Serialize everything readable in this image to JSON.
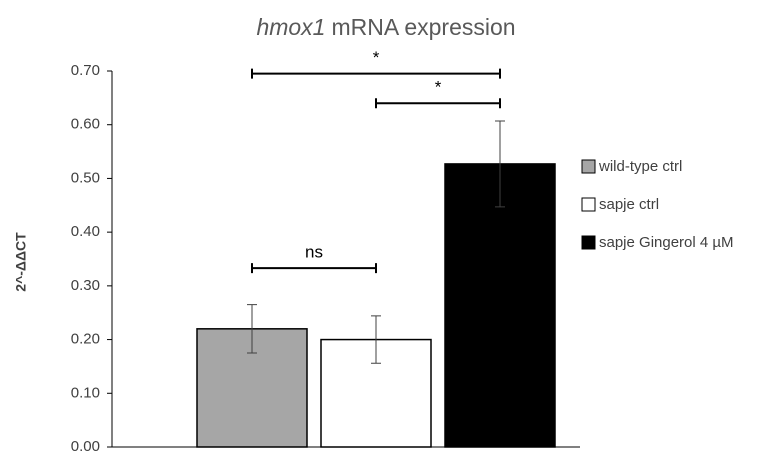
{
  "chart_data": {
    "type": "bar",
    "title": [
      "hmox1",
      "mRNA expression"
    ],
    "y_label": "2^-ΔΔCT",
    "categories": [
      "wild-type ctrl",
      "sapje ctrl",
      "sapje Gingerol 4 µM"
    ],
    "values": [
      0.22,
      0.2,
      0.527
    ],
    "errors": [
      0.045,
      0.044,
      0.08
    ],
    "colors": [
      "#a6a6a6",
      "#ffffff",
      "#000000"
    ],
    "ylim": [
      0,
      0.7
    ],
    "yticks": [
      {
        "value": 0,
        "label": "0.00"
      },
      {
        "value": 0.1,
        "label": "0.10"
      },
      {
        "value": 0.2,
        "label": "0.20"
      },
      {
        "value": 0.3,
        "label": "0.30"
      },
      {
        "value": 0.4,
        "label": "0.40"
      },
      {
        "value": 0.5,
        "label": "0.50"
      },
      {
        "value": 0.6,
        "label": "0.60"
      },
      {
        "value": 0.7,
        "label": "0.70"
      }
    ],
    "grid": false,
    "legend": "right",
    "annotations": [
      {
        "label": "*",
        "bars": [
          0,
          2
        ],
        "y": 0.695
      },
      {
        "label": "*",
        "bars": [
          1,
          2
        ],
        "y": 0.64
      },
      {
        "label": "ns",
        "bars": [
          0,
          1
        ],
        "y": 0.333
      }
    ]
  }
}
